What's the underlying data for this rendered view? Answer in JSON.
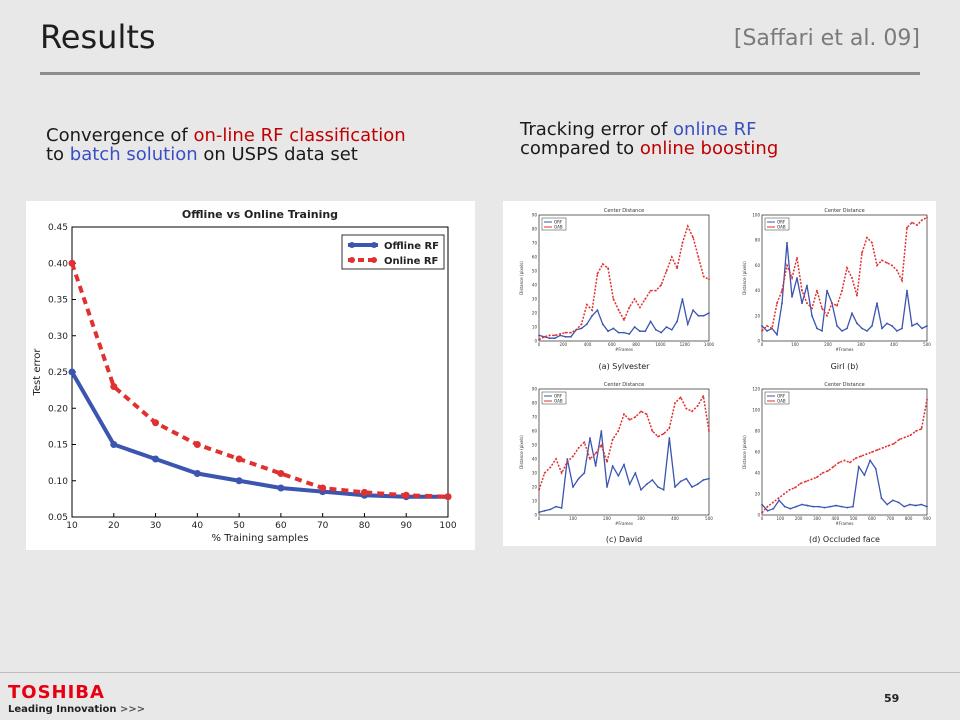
{
  "slide": {
    "title": "Results",
    "citation": "[Saffari et al. 09]",
    "page_number": "59"
  },
  "captions": {
    "left": {
      "part1": "Convergence of ",
      "part2": "on-line RF classification",
      "part3": "to ",
      "part4": "batch solution",
      "part5": " on USPS data set"
    },
    "right": {
      "part1": "Tracking error of ",
      "part2": "online RF",
      "part3": "compared to ",
      "part4": "online boosting"
    }
  },
  "logo": {
    "word": "TOSHIBA",
    "tagline": "Leading Innovation",
    "arrows": ">>>"
  },
  "colors": {
    "offline": "#3b55b0",
    "online": "#e03131",
    "accent_red": "#c00000",
    "accent_blue": "#3a4fc2"
  },
  "chart_data": [
    {
      "type": "line",
      "title": "Offline vs Online Training",
      "xlabel": "% Training samples",
      "ylabel": "Test error",
      "x": [
        10,
        20,
        30,
        40,
        50,
        60,
        70,
        80,
        90,
        100
      ],
      "xlim": [
        10,
        100
      ],
      "ylim": [
        0.05,
        0.45
      ],
      "xticks": [
        "10",
        "20",
        "30",
        "40",
        "50",
        "60",
        "70",
        "80",
        "90",
        "100"
      ],
      "yticks": [
        "0.05",
        "0.10",
        "0.15",
        "0.20",
        "0.25",
        "0.30",
        "0.35",
        "0.40",
        "0.45"
      ],
      "legend_position": "top-right",
      "series": [
        {
          "name": "Offline RF",
          "values": [
            0.25,
            0.15,
            0.13,
            0.11,
            0.1,
            0.09,
            0.085,
            0.08,
            0.078,
            0.078
          ]
        },
        {
          "name": "Online RF",
          "values": [
            0.4,
            0.23,
            0.18,
            0.15,
            0.13,
            0.11,
            0.09,
            0.084,
            0.08,
            0.078
          ]
        }
      ]
    },
    {
      "type": "line",
      "title": "Center Distance",
      "caption": "(a) Sylvester",
      "xlabel": "#Frames",
      "ylabel": "Distance (pixels)",
      "legend": [
        "ORF",
        "OAB"
      ],
      "xlim": [
        0,
        1400
      ],
      "ylim": [
        0,
        90
      ],
      "xticks": [
        "0",
        "200",
        "400",
        "600",
        "800",
        "1000",
        "1200",
        "1400"
      ],
      "yticks": [
        "0",
        "10",
        "20",
        "30",
        "40",
        "50",
        "60",
        "70",
        "80",
        "90"
      ],
      "series": [
        {
          "name": "ORF",
          "values": [
            4,
            3,
            2,
            2,
            4,
            3,
            3,
            8,
            9,
            12,
            18,
            22,
            12,
            7,
            9,
            6,
            6,
            5,
            10,
            7,
            7,
            14,
            8,
            6,
            10,
            8,
            14,
            30,
            12,
            22,
            18,
            18,
            20
          ]
        },
        {
          "name": "OAB",
          "values": [
            1,
            3,
            4,
            4,
            5,
            6,
            6,
            8,
            12,
            26,
            22,
            48,
            55,
            52,
            30,
            22,
            15,
            24,
            30,
            24,
            30,
            36,
            36,
            40,
            50,
            60,
            52,
            70,
            82,
            74,
            60,
            46,
            44
          ]
        }
      ]
    },
    {
      "type": "line",
      "title": "Center Distance",
      "caption": "Girl (b)",
      "xlabel": "#Frames",
      "ylabel": "Distance (pixels)",
      "legend": [
        "ORF",
        "OAB"
      ],
      "xlim": [
        0,
        500
      ],
      "ylim": [
        0,
        100
      ],
      "xticks": [
        "0",
        "100",
        "200",
        "300",
        "400",
        "500"
      ],
      "yticks": [
        "0",
        "20",
        "40",
        "60",
        "80",
        "100"
      ],
      "series": [
        {
          "name": "ORF",
          "values": [
            12,
            8,
            10,
            5,
            30,
            78,
            35,
            50,
            30,
            44,
            20,
            10,
            8,
            40,
            30,
            12,
            8,
            10,
            22,
            14,
            10,
            8,
            12,
            30,
            10,
            14,
            12,
            8,
            10,
            40,
            12,
            14,
            10,
            12
          ]
        },
        {
          "name": "OAB",
          "values": [
            8,
            12,
            10,
            30,
            40,
            60,
            50,
            66,
            40,
            30,
            26,
            40,
            26,
            20,
            30,
            28,
            40,
            58,
            50,
            36,
            70,
            82,
            78,
            60,
            64,
            62,
            60,
            56,
            48,
            90,
            94,
            92,
            96,
            98
          ]
        }
      ]
    },
    {
      "type": "line",
      "title": "Center Distance",
      "caption": "(c) David",
      "xlabel": "#Frames",
      "ylabel": "Distance (pixels)",
      "legend": [
        "ORF",
        "OAB"
      ],
      "xlim": [
        0,
        500
      ],
      "ylim": [
        0,
        90
      ],
      "xticks": [
        "0",
        "100",
        "200",
        "300",
        "400",
        "500"
      ],
      "yticks": [
        "0",
        "10",
        "20",
        "30",
        "40",
        "50",
        "60",
        "70",
        "80",
        "90"
      ],
      "series": [
        {
          "name": "ORF",
          "values": [
            2,
            3,
            4,
            6,
            5,
            40,
            20,
            26,
            30,
            55,
            35,
            60,
            20,
            35,
            28,
            36,
            22,
            30,
            18,
            22,
            25,
            20,
            18,
            55,
            20,
            24,
            26,
            20,
            22,
            25,
            26
          ]
        },
        {
          "name": "OAB",
          "values": [
            18,
            30,
            34,
            40,
            30,
            38,
            42,
            48,
            52,
            40,
            44,
            50,
            38,
            54,
            60,
            72,
            68,
            70,
            74,
            72,
            60,
            56,
            58,
            62,
            80,
            84,
            76,
            74,
            78,
            85,
            60
          ]
        }
      ]
    },
    {
      "type": "line",
      "title": "Center Distance",
      "caption": "(d) Occluded face",
      "xlabel": "#Frames",
      "ylabel": "Distance (pixels)",
      "legend": [
        "ORF",
        "OAB"
      ],
      "xlim": [
        0,
        900
      ],
      "ylim": [
        0,
        120
      ],
      "xticks": [
        "0",
        "100",
        "200",
        "300",
        "400",
        "500",
        "600",
        "700",
        "800",
        "900"
      ],
      "yticks": [
        "0",
        "20",
        "40",
        "60",
        "80",
        "100",
        "120"
      ],
      "series": [
        {
          "name": "ORF",
          "values": [
            10,
            4,
            6,
            14,
            8,
            6,
            8,
            10,
            9,
            8,
            8,
            7,
            8,
            9,
            8,
            7,
            8,
            46,
            38,
            52,
            44,
            16,
            10,
            14,
            12,
            8,
            10,
            9,
            10,
            8
          ]
        },
        {
          "name": "OAB",
          "values": [
            2,
            8,
            12,
            16,
            20,
            24,
            26,
            30,
            32,
            34,
            36,
            40,
            42,
            46,
            50,
            52,
            50,
            54,
            56,
            58,
            60,
            62,
            64,
            66,
            68,
            72,
            74,
            76,
            80,
            82,
            110
          ]
        }
      ]
    }
  ]
}
